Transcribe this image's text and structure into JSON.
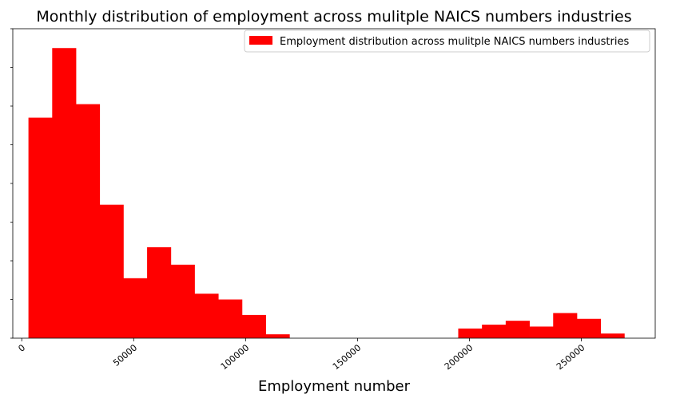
{
  "chart_data": {
    "type": "bar",
    "title": "Monthly distribution of employment across mulitple NAICS numbers industries",
    "xlabel": "Employment number",
    "ylabel": "",
    "xlim": [
      -4000,
      283000
    ],
    "ylim": [
      0,
      80
    ],
    "x_ticks": [
      0,
      50000,
      100000,
      150000,
      200000,
      250000
    ],
    "x_tick_labels": [
      "0",
      "50000",
      "100000",
      "150000",
      "200000",
      "250000"
    ],
    "y_ticks": [
      0,
      10,
      20,
      30,
      40,
      50,
      60,
      70,
      80
    ],
    "y_tick_labels_visible": false,
    "bins": [
      {
        "x0": 3000,
        "x1": 13600,
        "value": 57
      },
      {
        "x0": 13600,
        "x1": 24200,
        "value": 75
      },
      {
        "x0": 24200,
        "x1": 34800,
        "value": 60.5
      },
      {
        "x0": 34800,
        "x1": 45400,
        "value": 34.5
      },
      {
        "x0": 45400,
        "x1": 56000,
        "value": 15.5
      },
      {
        "x0": 56000,
        "x1": 66600,
        "value": 23.5
      },
      {
        "x0": 66600,
        "x1": 77200,
        "value": 19
      },
      {
        "x0": 77200,
        "x1": 87800,
        "value": 11.5
      },
      {
        "x0": 87800,
        "x1": 98400,
        "value": 10
      },
      {
        "x0": 98400,
        "x1": 109000,
        "value": 6
      },
      {
        "x0": 109000,
        "x1": 119600,
        "value": 1
      },
      {
        "x0": 195000,
        "x1": 205600,
        "value": 2.5
      },
      {
        "x0": 205600,
        "x1": 216200,
        "value": 3.5
      },
      {
        "x0": 216200,
        "x1": 226800,
        "value": 4.5
      },
      {
        "x0": 226800,
        "x1": 237400,
        "value": 3
      },
      {
        "x0": 237400,
        "x1": 248000,
        "value": 6.5
      },
      {
        "x0": 248000,
        "x1": 258600,
        "value": 5
      },
      {
        "x0": 258600,
        "x1": 269200,
        "value": 1.2
      }
    ],
    "legend": {
      "entries": [
        "Employment distribution across mulitple NAICS numbers industries"
      ],
      "placement": "top-right"
    },
    "colors": {
      "bar": "#ff0000",
      "axis": "#000000",
      "legend_border": "#cccccc"
    },
    "grid": false
  }
}
